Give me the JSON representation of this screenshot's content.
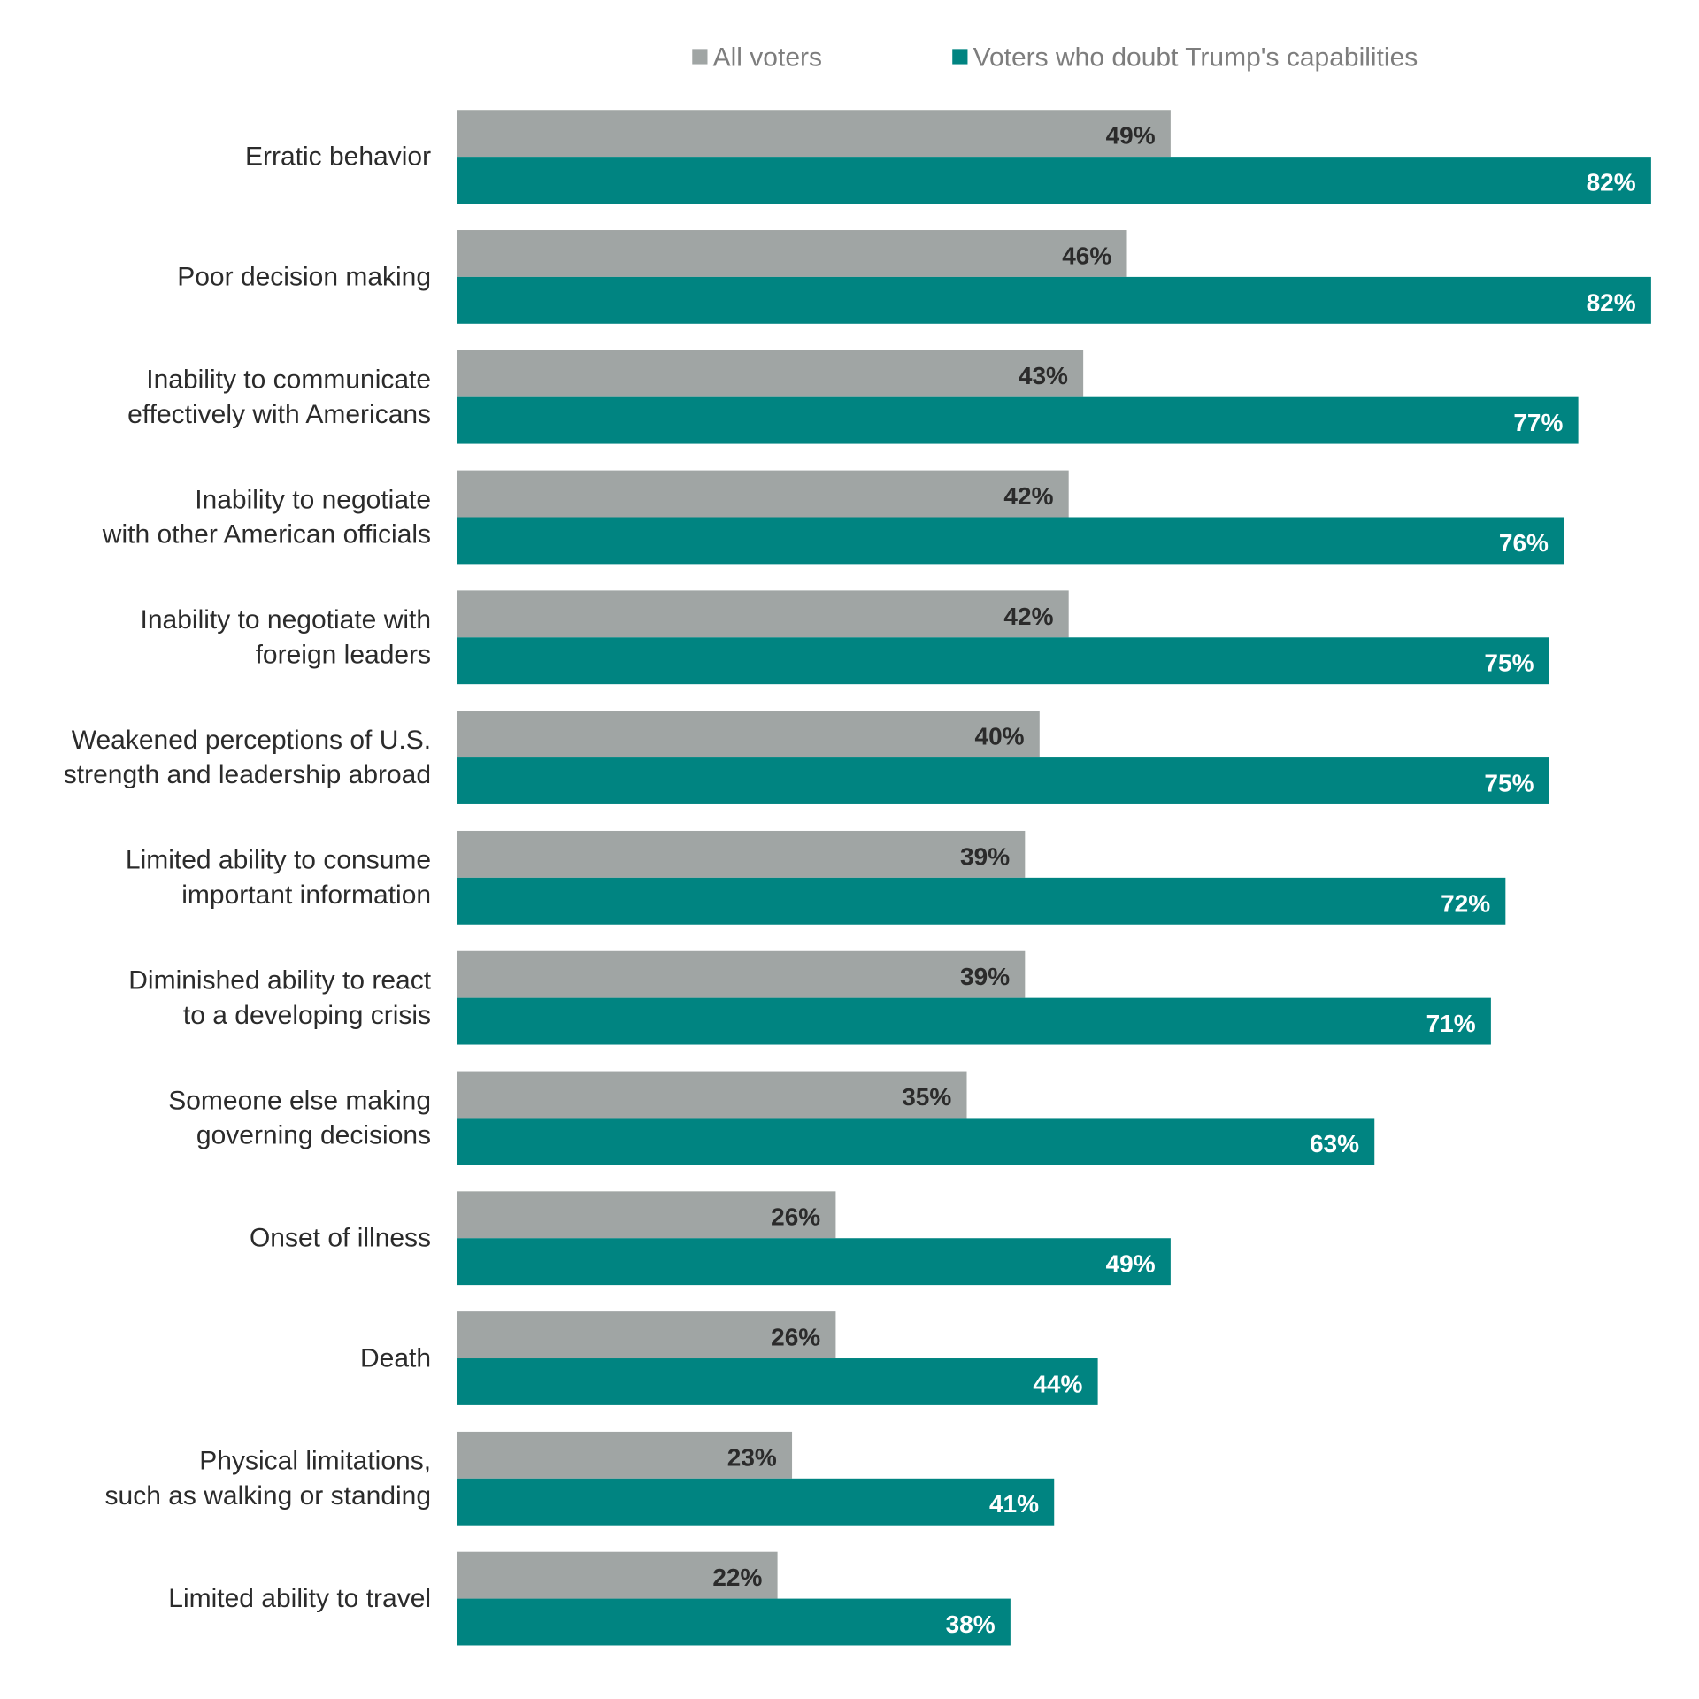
{
  "chart_data": {
    "type": "bar",
    "orientation": "horizontal",
    "title": "",
    "xlabel": "",
    "ylabel": "",
    "xlim": [
      0,
      82
    ],
    "grid": false,
    "legend_position": "top",
    "categories": [
      [
        "Erratic behavior"
      ],
      [
        "Poor decision making"
      ],
      [
        "Inability to communicate",
        "effectively with Americans"
      ],
      [
        "Inability to negotiate",
        "with other American officials"
      ],
      [
        "Inability to negotiate with",
        "foreign leaders"
      ],
      [
        "Weakened perceptions of U.S.",
        "strength and leadership abroad"
      ],
      [
        "Limited ability to consume",
        "important information"
      ],
      [
        "Diminished ability to react",
        "to a developing crisis"
      ],
      [
        "Someone else making",
        "governing decisions"
      ],
      [
        "Onset of illness"
      ],
      [
        "Death"
      ],
      [
        "Physical limitations,",
        "such as walking or standing"
      ],
      [
        "Limited ability to travel"
      ]
    ],
    "series": [
      {
        "name": "All voters",
        "color": "#a0a5a4",
        "label_color": "#2b2b2b",
        "values": [
          49,
          46,
          43,
          42,
          42,
          40,
          39,
          39,
          35,
          26,
          26,
          23,
          22
        ],
        "labels": [
          "49%",
          "46%",
          "43%",
          "42%",
          "42%",
          "40%",
          "39%",
          "39%",
          "35%",
          "26%",
          "26%",
          "23%",
          "22%"
        ]
      },
      {
        "name": "Voters who doubt Trump's capabilities",
        "color": "#008481",
        "label_color": "#ffffff",
        "values": [
          82,
          82,
          77,
          76,
          75,
          75,
          72,
          71,
          63,
          49,
          44,
          41,
          38
        ],
        "labels": [
          "82%",
          "82%",
          "77%",
          "76%",
          "75%",
          "75%",
          "72%",
          "71%",
          "63%",
          "49%",
          "44%",
          "41%",
          "38%"
        ]
      }
    ]
  }
}
